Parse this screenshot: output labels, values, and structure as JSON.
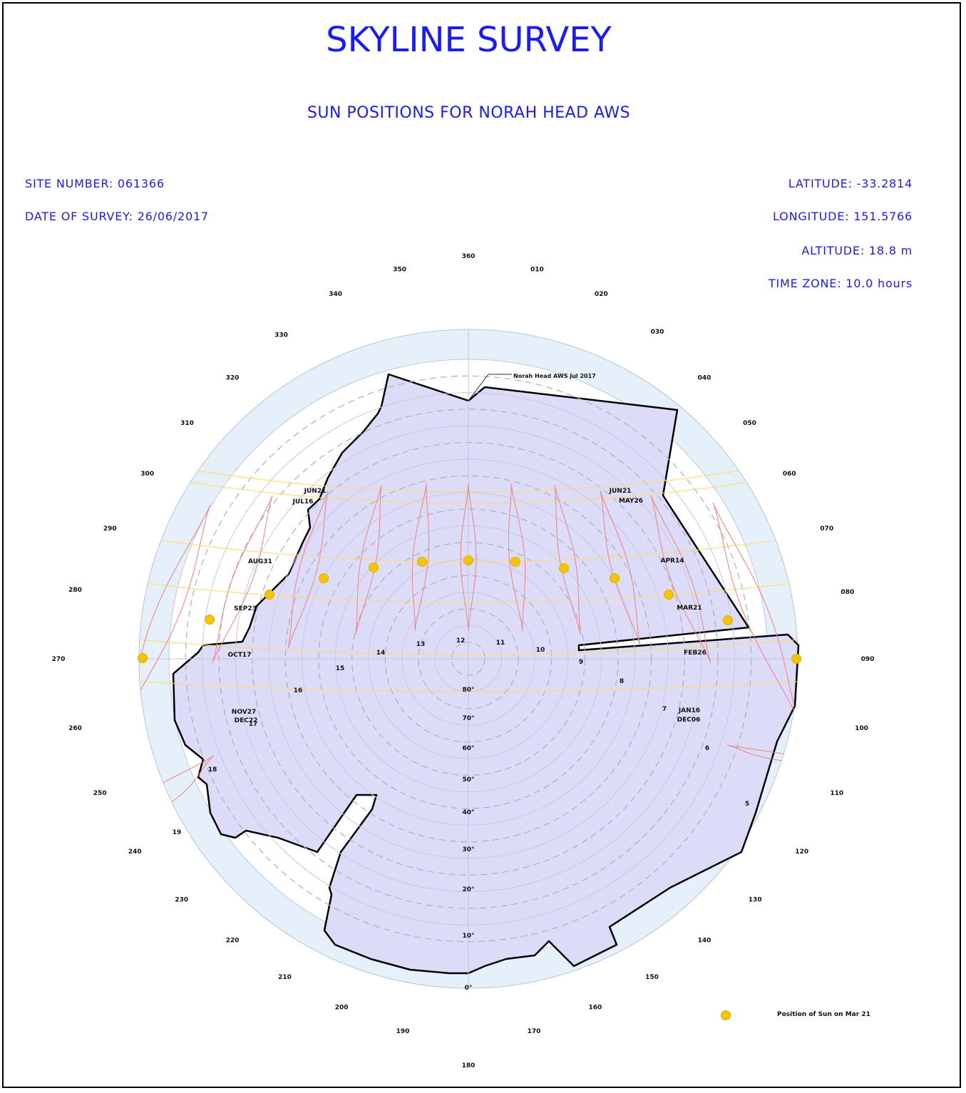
{
  "title": "SKYLINE SURVEY",
  "subtitle": "SUN POSITIONS FOR NORAH HEAD AWS",
  "left_info": [
    "SITE NUMBER: 061366",
    "DATE OF SURVEY: 26/06/2017"
  ],
  "right_info": [
    "LATITUDE: -33.2814",
    "LONGITUDE: 151.5766",
    "ALTITUDE: 18.8 m",
    "TIME ZONE: 10.0 hours"
  ],
  "azimuth_labels": [
    "360",
    "010",
    "020",
    "030",
    "040",
    "050",
    "060",
    "070",
    "080",
    "090",
    "100",
    "110",
    "120",
    "130",
    "140",
    "150",
    "160",
    "170",
    "180",
    "190",
    "200",
    "210",
    "220",
    "230",
    "240",
    "250",
    "260",
    "270",
    "280",
    "290",
    "300",
    "310",
    "320",
    "330",
    "340",
    "350"
  ],
  "elevation_labels": [
    "0°",
    "10°",
    "20°",
    "30°",
    "40°",
    "50°",
    "60°",
    "70°",
    "80°"
  ],
  "hour_labels": [
    "5",
    "6",
    "7",
    "8",
    "9",
    "10",
    "11",
    "12",
    "13",
    "14",
    "15",
    "16",
    "17",
    "18",
    "19"
  ],
  "date_labels": [
    "JUN21",
    "JUL16",
    "AUG31",
    "SEP23",
    "OCT17",
    "NOV27",
    "DEC22",
    "JUN21",
    "MAY26",
    "APR14",
    "MAR21",
    "FEB26",
    "JAN16",
    "DEC06"
  ],
  "skyline_label": "Norah Head AWS Jul 2017",
  "legend_label": "Position of Sun on Mar 21",
  "colors": {
    "text": "#1a1aff",
    "skyline_fill": "#dcdcf8",
    "outer_ring": "#e6f0fa",
    "analemma": "#f08080",
    "date_path": "#ffd966",
    "sun": "#f5c400"
  }
}
